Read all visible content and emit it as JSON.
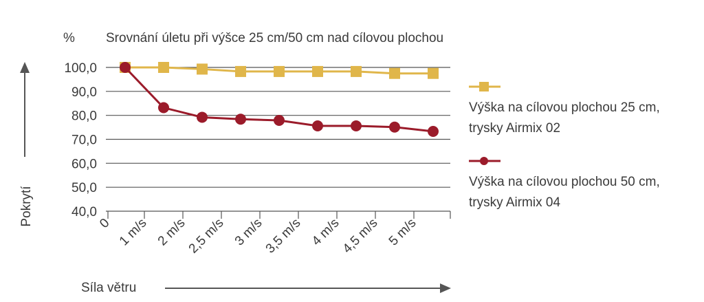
{
  "chart_data": {
    "type": "line",
    "unit_label": "%",
    "title": "Srovnání úletu při výšce 25 cm/50 cm nad cílovou plochou",
    "ylabel": "Pokrytí",
    "xlabel": "Síla větru",
    "categories": [
      "0",
      "1 m/s",
      "2 m/s",
      "2,5 m/s",
      "3 m/s",
      "3,5 m/s",
      "4 m/s",
      "4,5 m/s",
      "5 m/s"
    ],
    "y_ticks": [
      "100,0",
      "90,0",
      "80,0",
      "70,0",
      "60,0",
      "50,0",
      "40,0"
    ],
    "ylim": [
      40,
      100
    ],
    "grid": true,
    "legend_position": "right",
    "series": [
      {
        "name_line1": "Výška na cílovou plochou 25 cm,",
        "name_line2": "trysky Airmix 02",
        "marker": "square",
        "color": "#e0b64a",
        "values": [
          100.0,
          100.0,
          99.3,
          98.3,
          98.3,
          98.3,
          98.3,
          97.5,
          97.5
        ]
      },
      {
        "name_line1": "Výška na cílovou plochou 50 cm,",
        "name_line2": "trysky Airmix 04",
        "marker": "circle",
        "color": "#9b1b2a",
        "values": [
          100.0,
          83.2,
          79.2,
          78.4,
          77.9,
          75.6,
          75.6,
          75.1,
          73.3
        ]
      }
    ]
  }
}
